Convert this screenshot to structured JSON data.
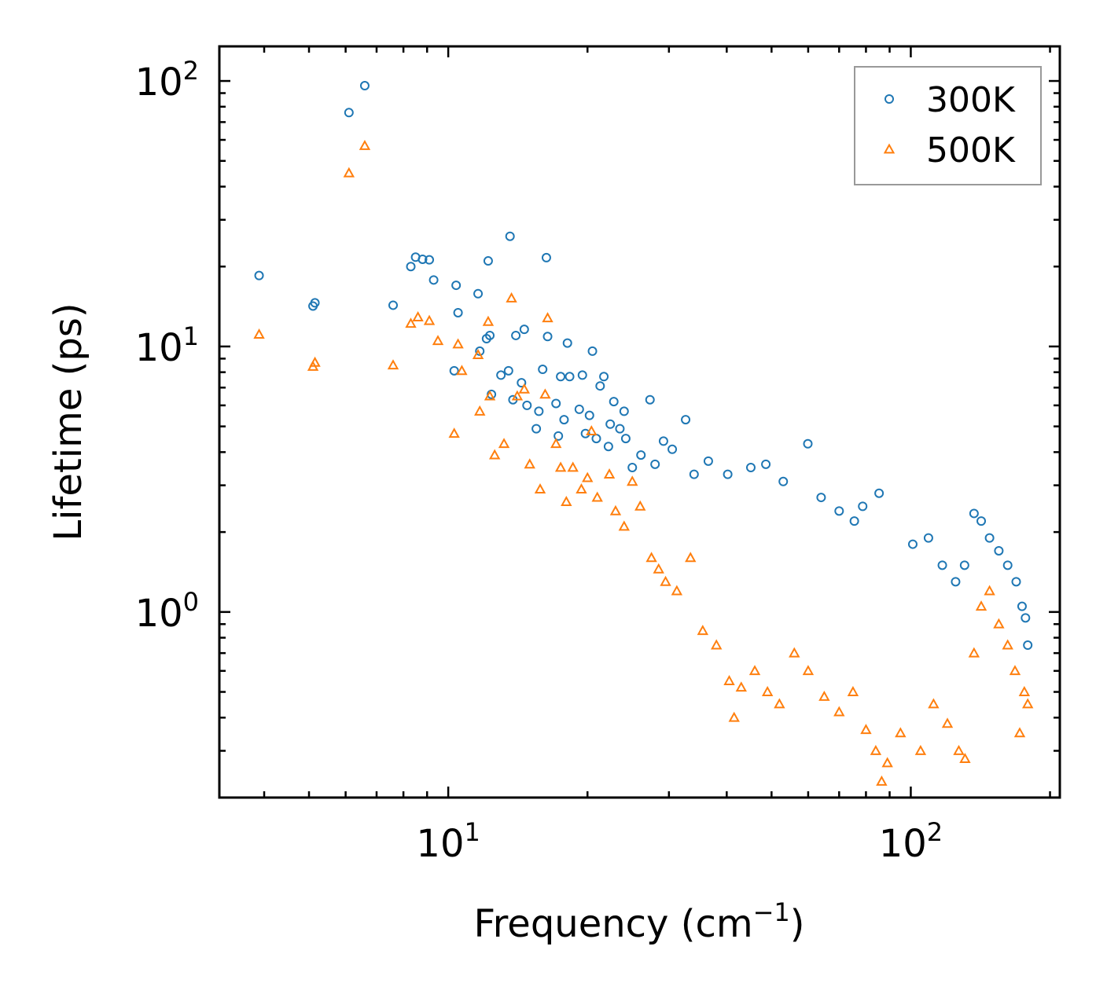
{
  "chart_data": {
    "type": "scatter",
    "title": "",
    "xlabel": {
      "text": "Frequency (cm",
      "sup": "−1",
      "suffix": ")"
    },
    "ylabel": "Lifetime (ps)",
    "xscale": "log",
    "yscale": "log",
    "xlim": [
      3.2,
      210
    ],
    "ylim": [
      0.2,
      135
    ],
    "x_ticks": [
      {
        "value": 10,
        "base": "10",
        "exp": "1"
      },
      {
        "value": 100,
        "base": "10",
        "exp": "2"
      }
    ],
    "y_ticks": [
      {
        "value": 1,
        "base": "10",
        "exp": "0"
      },
      {
        "value": 10,
        "base": "10",
        "exp": "1"
      },
      {
        "value": 100,
        "base": "10",
        "exp": "2"
      }
    ],
    "legend_position": "top-right",
    "series": [
      {
        "name": "300K",
        "marker": "circle",
        "color": "#1f77b4",
        "points": [
          [
            3.9,
            18.5
          ],
          [
            5.1,
            14.2
          ],
          [
            5.15,
            14.6
          ],
          [
            6.1,
            76
          ],
          [
            6.6,
            96
          ],
          [
            7.6,
            14.3
          ],
          [
            8.3,
            20
          ],
          [
            8.5,
            21.7
          ],
          [
            8.8,
            21.3
          ],
          [
            9.1,
            21.2
          ],
          [
            9.3,
            17.8
          ],
          [
            10.3,
            8.1
          ],
          [
            10.4,
            17
          ],
          [
            10.5,
            13.4
          ],
          [
            11.6,
            15.8
          ],
          [
            11.7,
            9.6
          ],
          [
            12.1,
            10.7
          ],
          [
            12.2,
            21
          ],
          [
            12.3,
            11
          ],
          [
            12.4,
            6.6
          ],
          [
            13,
            7.8
          ],
          [
            13.5,
            8.1
          ],
          [
            13.6,
            26
          ],
          [
            13.8,
            6.3
          ],
          [
            14,
            11
          ],
          [
            14.4,
            7.3
          ],
          [
            14.6,
            11.6
          ],
          [
            14.8,
            6
          ],
          [
            15.5,
            4.9
          ],
          [
            15.7,
            5.7
          ],
          [
            16,
            8.2
          ],
          [
            16.3,
            21.6
          ],
          [
            16.4,
            10.9
          ],
          [
            17.1,
            6.1
          ],
          [
            17.3,
            4.6
          ],
          [
            17.5,
            7.7
          ],
          [
            17.8,
            5.3
          ],
          [
            18.1,
            10.3
          ],
          [
            18.3,
            7.7
          ],
          [
            19.2,
            5.8
          ],
          [
            19.5,
            7.8
          ],
          [
            19.8,
            4.7
          ],
          [
            20.2,
            5.5
          ],
          [
            20.5,
            9.6
          ],
          [
            20.9,
            4.5
          ],
          [
            21.3,
            7.1
          ],
          [
            21.7,
            7.7
          ],
          [
            22.2,
            4.2
          ],
          [
            22.4,
            5.1
          ],
          [
            22.8,
            6.2
          ],
          [
            23.5,
            4.9
          ],
          [
            24,
            5.7
          ],
          [
            24.2,
            4.5
          ],
          [
            25,
            3.5
          ],
          [
            26.1,
            3.9
          ],
          [
            27.3,
            6.3
          ],
          [
            28,
            3.6
          ],
          [
            29.2,
            4.4
          ],
          [
            30.5,
            4.1
          ],
          [
            32.6,
            5.3
          ],
          [
            34,
            3.3
          ],
          [
            36.5,
            3.7
          ],
          [
            40.2,
            3.3
          ],
          [
            45.1,
            3.5
          ],
          [
            48.6,
            3.6
          ],
          [
            53,
            3.1
          ],
          [
            59.9,
            4.3
          ],
          [
            64,
            2.7
          ],
          [
            70,
            2.4
          ],
          [
            75.5,
            2.2
          ],
          [
            78.7,
            2.5
          ],
          [
            85.4,
            2.8
          ],
          [
            101,
            1.8
          ],
          [
            109.2,
            1.9
          ],
          [
            117,
            1.5
          ],
          [
            125,
            1.3
          ],
          [
            130.7,
            1.5
          ],
          [
            137,
            2.35
          ],
          [
            142,
            2.2
          ],
          [
            148,
            1.9
          ],
          [
            155,
            1.7
          ],
          [
            162,
            1.5
          ],
          [
            169,
            1.3
          ],
          [
            174,
            1.05
          ],
          [
            177,
            0.95
          ],
          [
            179,
            0.75
          ]
        ]
      },
      {
        "name": "500K",
        "marker": "triangle",
        "color": "#ff7f0e",
        "points": [
          [
            3.9,
            11.1
          ],
          [
            5.1,
            8.4
          ],
          [
            5.15,
            8.7
          ],
          [
            6.1,
            45
          ],
          [
            6.6,
            57
          ],
          [
            7.6,
            8.5
          ],
          [
            8.3,
            12.2
          ],
          [
            8.6,
            12.9
          ],
          [
            9.1,
            12.5
          ],
          [
            9.5,
            10.5
          ],
          [
            10.3,
            4.7
          ],
          [
            10.5,
            10.2
          ],
          [
            10.7,
            8.1
          ],
          [
            11.6,
            9.3
          ],
          [
            11.7,
            5.7
          ],
          [
            12.2,
            12.4
          ],
          [
            12.3,
            6.5
          ],
          [
            12.6,
            3.9
          ],
          [
            13.2,
            4.3
          ],
          [
            13.7,
            15.2
          ],
          [
            14.1,
            6.5
          ],
          [
            14.6,
            6.9
          ],
          [
            15,
            3.6
          ],
          [
            15.8,
            2.9
          ],
          [
            16.2,
            6.6
          ],
          [
            16.4,
            12.8
          ],
          [
            17.1,
            4.3
          ],
          [
            17.5,
            3.5
          ],
          [
            18,
            2.6
          ],
          [
            18.6,
            3.5
          ],
          [
            19.4,
            2.9
          ],
          [
            20,
            3.2
          ],
          [
            20.4,
            4.8
          ],
          [
            21,
            2.7
          ],
          [
            22.3,
            3.3
          ],
          [
            23,
            2.4
          ],
          [
            24,
            2.1
          ],
          [
            25,
            3.1
          ],
          [
            26,
            2.5
          ],
          [
            27.5,
            1.6
          ],
          [
            28.5,
            1.45
          ],
          [
            29.5,
            1.3
          ],
          [
            31.2,
            1.2
          ],
          [
            33.4,
            1.6
          ],
          [
            35.5,
            0.85
          ],
          [
            38,
            0.75
          ],
          [
            40.5,
            0.55
          ],
          [
            41.5,
            0.4
          ],
          [
            43,
            0.52
          ],
          [
            46,
            0.6
          ],
          [
            49,
            0.5
          ],
          [
            52,
            0.45
          ],
          [
            56,
            0.7
          ],
          [
            60,
            0.6
          ],
          [
            65,
            0.48
          ],
          [
            70,
            0.42
          ],
          [
            75,
            0.5
          ],
          [
            80,
            0.36
          ],
          [
            84,
            0.3
          ],
          [
            86.5,
            0.23
          ],
          [
            89,
            0.27
          ],
          [
            95,
            0.35
          ],
          [
            105,
            0.3
          ],
          [
            112,
            0.45
          ],
          [
            120,
            0.38
          ],
          [
            127,
            0.3
          ],
          [
            131,
            0.28
          ],
          [
            137,
            0.7
          ],
          [
            142,
            1.05
          ],
          [
            148,
            1.2
          ],
          [
            155,
            0.9
          ],
          [
            162,
            0.75
          ],
          [
            168,
            0.6
          ],
          [
            172,
            0.35
          ],
          [
            176,
            0.5
          ],
          [
            179,
            0.45
          ]
        ]
      }
    ]
  }
}
